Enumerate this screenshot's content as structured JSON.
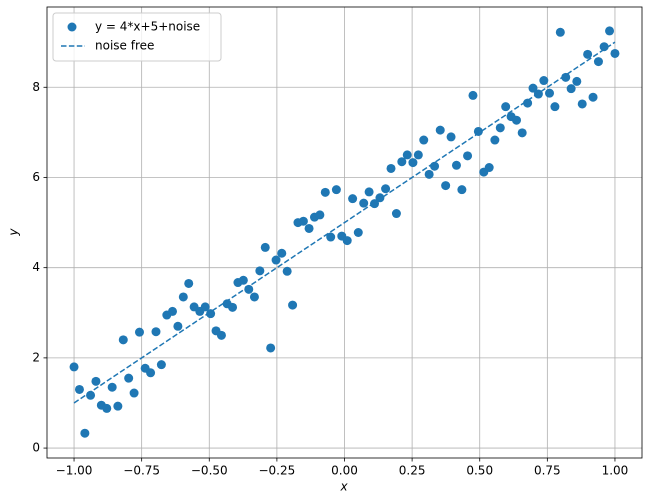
{
  "chart_data": {
    "type": "scatter",
    "xlabel": "x",
    "ylabel": "y",
    "xlim": [
      -1.1,
      1.1
    ],
    "ylim": [
      -0.22,
      9.78
    ],
    "xticks": [
      {
        "value": -1,
        "label": "−1.00"
      },
      {
        "value": -0.75,
        "label": "−0.75"
      },
      {
        "value": -0.5,
        "label": "−0.50"
      },
      {
        "value": -0.25,
        "label": "−0.25"
      },
      {
        "value": 0,
        "label": "0.00"
      },
      {
        "value": 0.25,
        "label": "0.25"
      },
      {
        "value": 0.5,
        "label": "0.50"
      },
      {
        "value": 0.75,
        "label": "0.75"
      },
      {
        "value": 1,
        "label": "1.00"
      }
    ],
    "yticks": [
      0,
      2,
      4,
      6,
      8
    ],
    "grid": true,
    "legend": "upper left",
    "series": [
      {
        "name": "y = 4*x+5+noise",
        "type": "scatter",
        "color": "#1f77b4",
        "x": [
          -1,
          -0.98,
          -0.96,
          -0.939,
          -0.919,
          -0.899,
          -0.879,
          -0.859,
          -0.838,
          -0.818,
          -0.798,
          -0.778,
          -0.758,
          -0.737,
          -0.717,
          -0.697,
          -0.677,
          -0.657,
          -0.636,
          -0.616,
          -0.596,
          -0.576,
          -0.556,
          -0.535,
          -0.515,
          -0.495,
          -0.475,
          -0.455,
          -0.434,
          -0.414,
          -0.394,
          -0.374,
          -0.354,
          -0.333,
          -0.313,
          -0.293,
          -0.273,
          -0.253,
          -0.232,
          -0.212,
          -0.192,
          -0.172,
          -0.152,
          -0.131,
          -0.111,
          -0.091,
          -0.071,
          -0.051,
          -0.03,
          -0.01,
          0.01,
          0.03,
          0.051,
          0.071,
          0.091,
          0.111,
          0.131,
          0.152,
          0.172,
          0.192,
          0.212,
          0.232,
          0.253,
          0.273,
          0.293,
          0.313,
          0.333,
          0.354,
          0.374,
          0.394,
          0.414,
          0.434,
          0.455,
          0.475,
          0.495,
          0.515,
          0.535,
          0.556,
          0.576,
          0.596,
          0.616,
          0.636,
          0.657,
          0.677,
          0.697,
          0.717,
          0.737,
          0.758,
          0.778,
          0.798,
          0.818,
          0.838,
          0.859,
          0.879,
          0.899,
          0.919,
          0.939,
          0.96,
          0.98,
          1
        ],
        "values": [
          1.8,
          1.3,
          0.33,
          1.17,
          1.48,
          0.95,
          0.88,
          1.35,
          0.93,
          2.4,
          1.55,
          1.22,
          2.57,
          1.77,
          1.67,
          2.58,
          1.85,
          2.95,
          3.03,
          2.7,
          3.35,
          3.65,
          3.13,
          3.03,
          3.13,
          2.98,
          2.6,
          2.5,
          3.2,
          3.12,
          3.67,
          3.72,
          3.52,
          3.35,
          3.93,
          4.45,
          2.22,
          4.17,
          4.32,
          3.92,
          3.17,
          5.0,
          5.03,
          4.87,
          5.12,
          5.17,
          5.67,
          4.68,
          5.73,
          4.7,
          4.6,
          5.53,
          4.78,
          5.43,
          5.68,
          5.42,
          5.55,
          5.75,
          6.2,
          5.2,
          6.35,
          6.5,
          6.33,
          6.5,
          6.83,
          6.07,
          6.25,
          7.05,
          5.82,
          6.9,
          6.27,
          5.73,
          6.48,
          7.82,
          7.02,
          6.12,
          6.22,
          6.83,
          7.1,
          7.57,
          7.35,
          7.27,
          6.99,
          7.65,
          7.98,
          7.85,
          8.15,
          7.87,
          7.57,
          9.22,
          8.22,
          7.97,
          8.13,
          7.63,
          8.73,
          7.78,
          8.57,
          8.9,
          9.25,
          8.75
        ]
      },
      {
        "name": "noise free",
        "type": "line",
        "color": "#1f77b4",
        "dashed": true,
        "x": [
          -1,
          1
        ],
        "values": [
          1,
          9
        ]
      }
    ]
  }
}
